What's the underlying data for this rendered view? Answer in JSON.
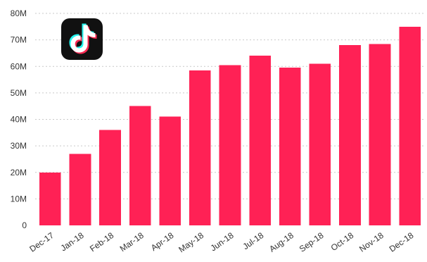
{
  "chart_data": {
    "type": "bar",
    "title": "",
    "xlabel": "",
    "ylabel": "",
    "categories": [
      "Dec-17",
      "Jan-18",
      "Feb-18",
      "Mar-18",
      "Apr-18",
      "May-18",
      "Jun-18",
      "Jul-18",
      "Aug-18",
      "Sep-18",
      "Oct-18",
      "Nov-18",
      "Dec-18"
    ],
    "values": [
      20,
      27,
      36,
      45,
      41,
      58.5,
      60.5,
      64,
      59.5,
      61,
      68,
      68.5,
      75
    ],
    "ylim": [
      0,
      80
    ],
    "yticks": [
      0,
      10,
      20,
      30,
      40,
      50,
      60,
      70,
      80
    ],
    "ytick_labels": [
      "0",
      "10M",
      "20M",
      "30M",
      "40M",
      "50M",
      "60M",
      "70M",
      "80M"
    ],
    "grid": true,
    "bar_color": "#ff2155"
  },
  "logo": {
    "icon": "tiktok-logo-icon",
    "background": "#111111",
    "accent_cyan": "#25f4ee",
    "accent_red": "#fe2c55"
  }
}
